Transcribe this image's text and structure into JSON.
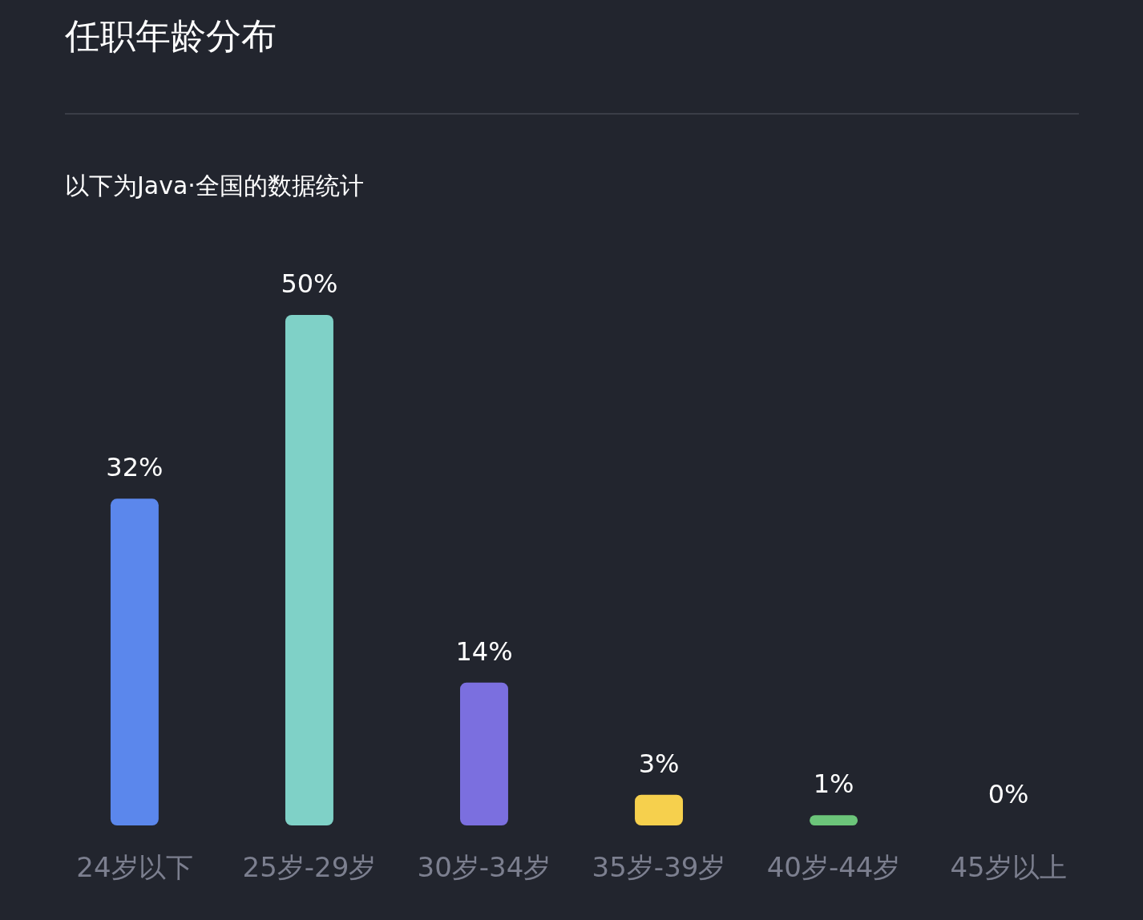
{
  "chart_data": {
    "type": "bar",
    "title": "任职年龄分布",
    "subtitle": "以下为Java·全国的数据统计",
    "categories": [
      "24岁以下",
      "25岁-29岁",
      "30岁-34岁",
      "35岁-39岁",
      "40岁-44岁",
      "45岁以上"
    ],
    "values": [
      32,
      50,
      14,
      3,
      1,
      0
    ],
    "value_labels": [
      "32%",
      "50%",
      "14%",
      "3%",
      "1%",
      "0%"
    ],
    "colors": [
      "#5b87ec",
      "#7fd1c7",
      "#7b6fdf",
      "#f6d04d",
      "#6cc57a",
      "#e8784a"
    ]
  }
}
